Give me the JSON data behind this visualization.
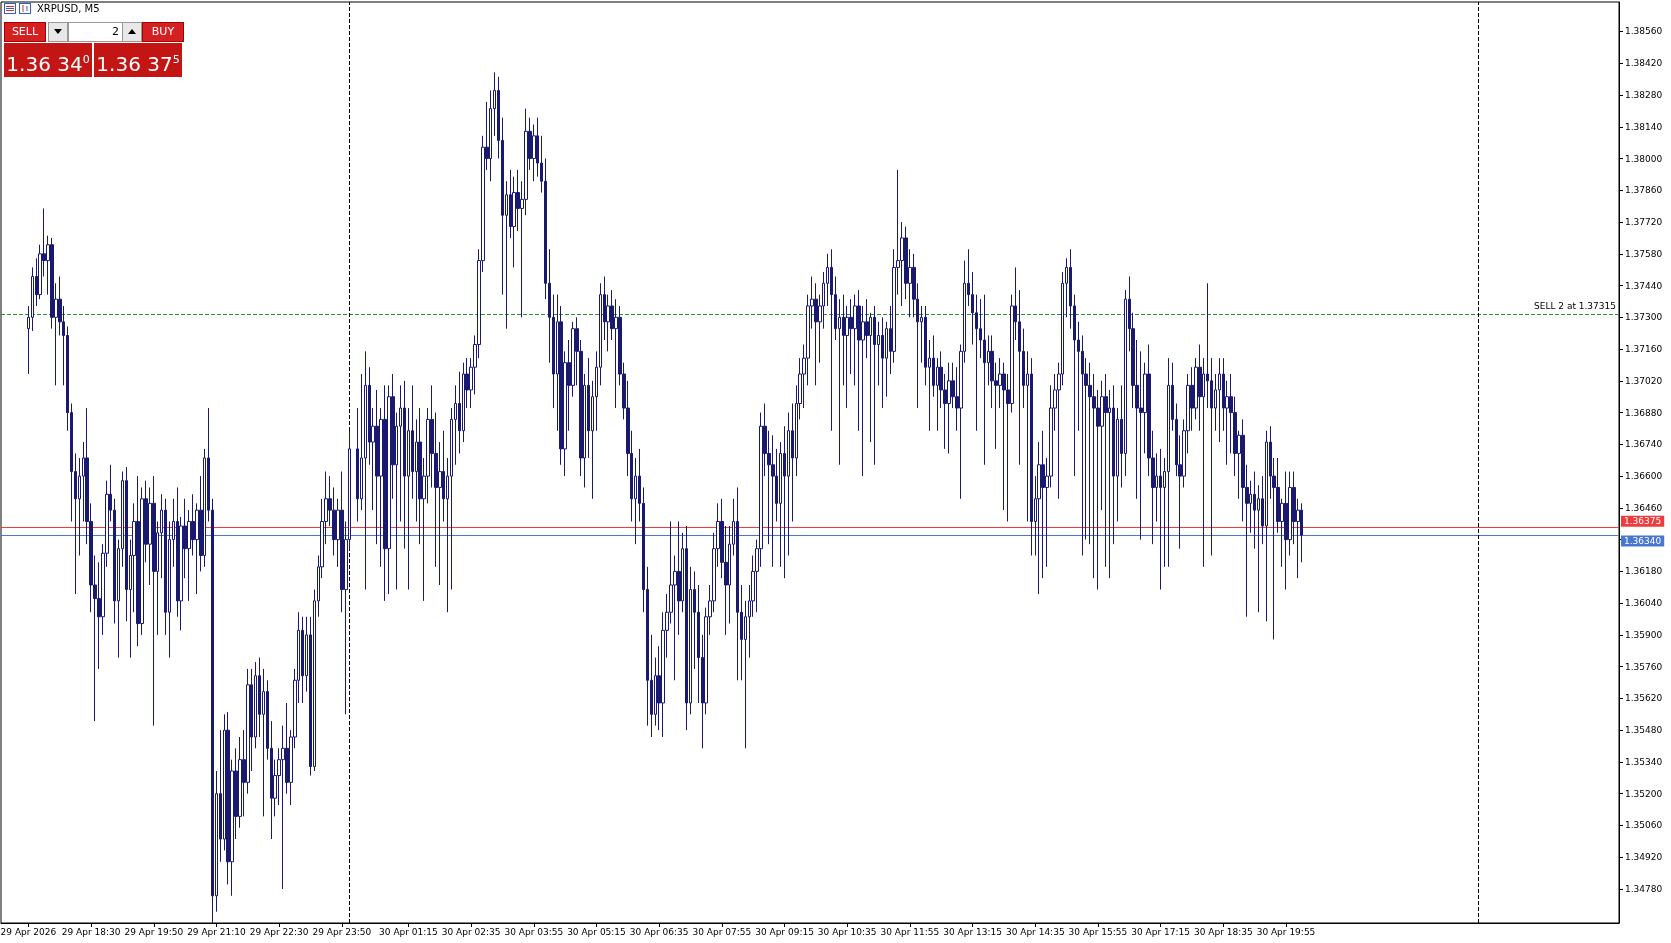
{
  "chart_data": {
    "type": "candlestick",
    "title": "XRPUSD, M5",
    "color": "#191970",
    "annotations": [
      "SELL",
      "2",
      "BUY",
      "1.36 34$^{0}$",
      "1.36 37$^{5}$"
    ],
    "xlim": [
      "2026-04-29T16:35",
      "2026-05-01T03:00"
    ],
    "xticks": [
      {
        "value": "2026-04-29T17:10",
        "label": "29 Apr 2026"
      },
      {
        "value": "2026-04-29T18:30",
        "label": "29 Apr 18:30"
      },
      {
        "value": "2026-04-29T19:50",
        "label": "29 Apr 19:50"
      },
      {
        "value": "2026-04-29T21:10",
        "label": "29 Apr 21:10"
      },
      {
        "value": "2026-04-29T22:30",
        "label": "29 Apr 22:30"
      },
      {
        "value": "2026-04-29T23:50",
        "label": "29 Apr 23:50"
      },
      {
        "value": "2026-04-30T01:15",
        "label": "30 Apr 01:15"
      },
      {
        "value": "2026-04-30T02:35",
        "label": "30 Apr 02:35"
      },
      {
        "value": "2026-04-30T03:55",
        "label": "30 Apr 03:55"
      },
      {
        "value": "2026-04-30T05:15",
        "label": "30 Apr 05:15"
      },
      {
        "value": "2026-04-30T06:35",
        "label": "30 Apr 06:35"
      },
      {
        "value": "2026-04-30T07:55",
        "label": "30 Apr 07:55"
      },
      {
        "value": "2026-04-30T09:15",
        "label": "30 Apr 09:15"
      },
      {
        "value": "2026-04-30T10:35",
        "label": "30 Apr 10:35"
      },
      {
        "value": "2026-04-30T11:55",
        "label": "30 Apr 11:55"
      },
      {
        "value": "2026-04-30T13:15",
        "label": "30 Apr 13:15"
      },
      {
        "value": "2026-04-30T14:35",
        "label": "30 Apr 14:35"
      },
      {
        "value": "2026-04-30T15:55",
        "label": "30 Apr 15:55"
      },
      {
        "value": "2026-04-30T17:15",
        "label": "30 Apr 17:15"
      },
      {
        "value": "2026-04-30T18:35",
        "label": "30 Apr 18:35"
      },
      {
        "value": "2026-04-30T19:55",
        "label": "30 Apr 19:55"
      }
    ],
    "ylim": [
      1.3463,
      1.3869
    ],
    "yticks": [
      {
        "value": 1.3478,
        "label": "1.34780"
      },
      {
        "value": 1.3492,
        "label": "1.34920"
      },
      {
        "value": 1.3506,
        "label": "1.35060"
      },
      {
        "value": 1.352,
        "label": "1.35200"
      },
      {
        "value": 1.3534,
        "label": "1.35340"
      },
      {
        "value": 1.3548,
        "label": "1.35480"
      },
      {
        "value": 1.3562,
        "label": "1.35620"
      },
      {
        "value": 1.3576,
        "label": "1.35760"
      },
      {
        "value": 1.359,
        "label": "1.35900"
      },
      {
        "value": 1.3604,
        "label": "1.36040"
      },
      {
        "value": 1.3618,
        "label": "1.36180"
      },
      {
        "value": 1.3632,
        "label": null
      },
      {
        "value": 1.3646,
        "label": "1.36460"
      },
      {
        "value": 1.366,
        "label": "1.36600"
      },
      {
        "value": 1.3674,
        "label": "1.36740"
      },
      {
        "value": 1.3688,
        "label": "1.36880"
      },
      {
        "value": 1.3702,
        "label": "1.37020"
      },
      {
        "value": 1.3716,
        "label": "1.37160"
      },
      {
        "value": 1.373,
        "label": "1.37300"
      },
      {
        "value": 1.3744,
        "label": "1.37440"
      },
      {
        "value": 1.3758,
        "label": "1.37580"
      },
      {
        "value": 1.3772,
        "label": "1.37720"
      },
      {
        "value": 1.3786,
        "label": "1.37860"
      },
      {
        "value": 1.38,
        "label": "1.38000"
      },
      {
        "value": 1.3814,
        "label": "1.38140"
      },
      {
        "value": 1.3828,
        "label": "1.38280"
      },
      {
        "value": 1.3842,
        "label": "1.38420"
      },
      {
        "value": 1.3856,
        "label": "1.38560"
      }
    ],
    "ref_lines": [
      {
        "axis": "y",
        "value": 1.37315,
        "label": "SELL 2 at 1.37315",
        "color": "#2e8b2e",
        "line_style": "dashed"
      },
      {
        "axis": "y",
        "value": 1.36375,
        "label": "1.36375",
        "color": "#f03c3c",
        "line_style": "solid"
      },
      {
        "axis": "y",
        "value": 1.3634,
        "label": "1.36340",
        "color": "#4a78d0",
        "line_style": "solid"
      },
      {
        "axis": "x",
        "value": "2026-04-30T00:00",
        "label": null,
        "color": "#000000",
        "line_style": "dashed"
      },
      {
        "axis": "x",
        "value": "2026-05-01T00:00",
        "label": null,
        "color": "#000000",
        "line_style": "dashed"
      }
    ],
    "x": [
      "2026-04-29T17:10",
      "2026-04-29T17:15",
      "2026-04-29T17:20",
      "2026-04-29T17:25",
      "2026-04-29T17:30",
      "2026-04-29T17:35",
      "2026-04-29T17:40",
      "2026-04-29T17:45",
      "2026-04-29T17:50",
      "2026-04-29T17:55",
      "2026-04-29T18:00",
      "2026-04-29T18:05",
      "2026-04-29T18:10",
      "2026-04-29T18:15",
      "2026-04-29T18:20",
      "2026-04-29T18:25",
      "2026-04-29T18:30",
      "2026-04-29T18:35",
      "2026-04-29T18:40",
      "2026-04-29T18:45",
      "2026-04-29T18:50",
      "2026-04-29T18:55",
      "2026-04-29T19:00",
      "2026-04-29T19:05",
      "2026-04-29T19:10",
      "2026-04-29T19:15",
      "2026-04-29T19:20",
      "2026-04-29T19:25",
      "2026-04-29T19:30",
      "2026-04-29T19:35",
      "2026-04-29T19:40",
      "2026-04-29T19:45",
      "2026-04-29T19:50",
      "2026-04-29T19:55",
      "2026-04-29T20:00",
      "2026-04-29T20:05",
      "2026-04-29T20:10",
      "2026-04-29T20:15",
      "2026-04-29T20:20",
      "2026-04-29T20:25",
      "2026-04-29T20:30",
      "2026-04-29T20:35",
      "2026-04-29T20:40",
      "2026-04-29T20:45",
      "2026-04-29T20:50",
      "2026-04-29T20:55",
      "2026-04-29T21:00",
      "2026-04-29T21:05",
      "2026-04-29T21:10",
      "2026-04-29T21:15",
      "2026-04-29T21:20",
      "2026-04-29T21:25",
      "2026-04-29T21:30",
      "2026-04-29T21:35",
      "2026-04-29T21:40",
      "2026-04-29T21:45",
      "2026-04-29T21:50",
      "2026-04-29T21:55",
      "2026-04-29T22:00",
      "2026-04-29T22:05",
      "2026-04-29T22:10",
      "2026-04-29T22:15",
      "2026-04-29T22:20",
      "2026-04-29T22:25",
      "2026-04-29T22:30",
      "2026-04-29T22:35",
      "2026-04-29T22:40",
      "2026-04-29T22:45",
      "2026-04-29T22:50",
      "2026-04-29T22:55",
      "2026-04-29T23:00",
      "2026-04-29T23:05",
      "2026-04-29T23:10",
      "2026-04-29T23:15",
      "2026-04-29T23:20",
      "2026-04-29T23:25",
      "2026-04-29T23:30",
      "2026-04-29T23:35",
      "2026-04-29T23:40",
      "2026-04-29T23:45",
      "2026-04-29T23:50",
      "2026-04-29T23:55",
      "2026-04-30T00:00",
      "2026-04-30T00:10",
      "2026-04-30T00:15",
      "2026-04-30T00:20",
      "2026-04-30T00:25",
      "2026-04-30T00:30",
      "2026-04-30T00:35",
      "2026-04-30T00:40",
      "2026-04-30T00:45",
      "2026-04-30T00:50",
      "2026-04-30T00:55",
      "2026-04-30T01:00",
      "2026-04-30T01:05",
      "2026-04-30T01:10",
      "2026-04-30T01:15",
      "2026-04-30T01:20",
      "2026-04-30T01:25",
      "2026-04-30T01:30",
      "2026-04-30T01:35",
      "2026-04-30T01:40",
      "2026-04-30T01:45",
      "2026-04-30T01:50",
      "2026-04-30T01:55",
      "2026-04-30T02:00",
      "2026-04-30T02:05",
      "2026-04-30T02:10",
      "2026-04-30T02:15",
      "2026-04-30T02:20",
      "2026-04-30T02:25",
      "2026-04-30T02:30",
      "2026-04-30T02:35",
      "2026-04-30T02:40",
      "2026-04-30T02:45",
      "2026-04-30T02:50",
      "2026-04-30T02:55",
      "2026-04-30T03:00",
      "2026-04-30T03:05",
      "2026-04-30T03:10",
      "2026-04-30T03:15",
      "2026-04-30T03:20",
      "2026-04-30T03:25",
      "2026-04-30T03:30",
      "2026-04-30T03:35",
      "2026-04-30T03:40",
      "2026-04-30T03:45",
      "2026-04-30T03:50",
      "2026-04-30T03:55",
      "2026-04-30T04:00",
      "2026-04-30T04:05",
      "2026-04-30T04:10",
      "2026-04-30T04:15",
      "2026-04-30T04:20",
      "2026-04-30T04:25",
      "2026-04-30T04:30",
      "2026-04-30T04:35",
      "2026-04-30T04:40",
      "2026-04-30T04:45",
      "2026-04-30T04:50",
      "2026-04-30T04:55",
      "2026-04-30T05:00",
      "2026-04-30T05:05",
      "2026-04-30T05:10",
      "2026-04-30T05:15",
      "2026-04-30T05:20",
      "2026-04-30T05:25",
      "2026-04-30T05:30",
      "2026-04-30T05:35",
      "2026-04-30T05:40",
      "2026-04-30T05:45",
      "2026-04-30T05:50",
      "2026-04-30T05:55",
      "2026-04-30T06:00",
      "2026-04-30T06:05",
      "2026-04-30T06:10",
      "2026-04-30T06:15",
      "2026-04-30T06:20",
      "2026-04-30T06:25",
      "2026-04-30T06:30",
      "2026-04-30T06:35",
      "2026-04-30T06:40",
      "2026-04-30T06:45",
      "2026-04-30T06:50",
      "2026-04-30T06:55",
      "2026-04-30T07:00",
      "2026-04-30T07:05",
      "2026-04-30T07:10",
      "2026-04-30T07:15",
      "2026-04-30T07:20",
      "2026-04-30T07:25",
      "2026-04-30T07:30",
      "2026-04-30T07:35",
      "2026-04-30T07:40",
      "2026-04-30T07:45",
      "2026-04-30T07:50",
      "2026-04-30T07:55",
      "2026-04-30T08:00",
      "2026-04-30T08:05",
      "2026-04-30T08:10",
      "2026-04-30T08:15",
      "2026-04-30T08:20",
      "2026-04-30T08:25",
      "2026-04-30T08:30",
      "2026-04-30T08:35",
      "2026-04-30T08:40",
      "2026-04-30T08:45",
      "2026-04-30T08:50",
      "2026-04-30T08:55",
      "2026-04-30T09:00",
      "2026-04-30T09:05",
      "2026-04-30T09:10",
      "2026-04-30T09:15",
      "2026-04-30T09:20",
      "2026-04-30T09:25",
      "2026-04-30T09:30",
      "2026-04-30T09:35",
      "2026-04-30T09:40",
      "2026-04-30T09:45",
      "2026-04-30T09:50",
      "2026-04-30T09:55",
      "2026-04-30T10:00",
      "2026-04-30T10:05",
      "2026-04-30T10:10",
      "2026-04-30T10:15",
      "2026-04-30T10:20",
      "2026-04-30T10:25",
      "2026-04-30T10:30",
      "2026-04-30T10:35",
      "2026-04-30T10:40",
      "2026-04-30T10:45",
      "2026-04-30T10:50",
      "2026-04-30T10:55",
      "2026-04-30T11:00",
      "2026-04-30T11:05",
      "2026-04-30T11:10",
      "2026-04-30T11:15",
      "2026-04-30T11:20",
      "2026-04-30T11:25",
      "2026-04-30T11:30",
      "2026-04-30T11:35",
      "2026-04-30T11:40",
      "2026-04-30T11:45",
      "2026-04-30T11:50",
      "2026-04-30T11:55",
      "2026-04-30T12:00",
      "2026-04-30T12:05",
      "2026-04-30T12:10",
      "2026-04-30T12:15",
      "2026-04-30T12:20",
      "2026-04-30T12:25",
      "2026-04-30T12:30",
      "2026-04-30T12:35",
      "2026-04-30T12:40",
      "2026-04-30T12:45",
      "2026-04-30T12:50",
      "2026-04-30T12:55",
      "2026-04-30T13:00",
      "2026-04-30T13:05",
      "2026-04-30T13:10",
      "2026-04-30T13:15",
      "2026-04-30T13:20",
      "2026-04-30T13:25",
      "2026-04-30T13:30",
      "2026-04-30T13:35",
      "2026-04-30T13:40",
      "2026-04-30T13:45",
      "2026-04-30T13:50",
      "2026-04-30T13:55",
      "2026-04-30T14:00",
      "2026-04-30T14:05",
      "2026-04-30T14:10",
      "2026-04-30T14:15",
      "2026-04-30T14:20",
      "2026-04-30T14:25",
      "2026-04-30T14:30",
      "2026-04-30T14:35",
      "2026-04-30T14:40",
      "2026-04-30T14:45",
      "2026-04-30T14:50",
      "2026-04-30T14:55",
      "2026-04-30T15:00",
      "2026-04-30T15:05",
      "2026-04-30T15:10",
      "2026-04-30T15:15",
      "2026-04-30T15:20",
      "2026-04-30T15:25",
      "2026-04-30T15:30",
      "2026-04-30T15:35",
      "2026-04-30T15:40",
      "2026-04-30T15:45",
      "2026-04-30T15:50",
      "2026-04-30T15:55",
      "2026-04-30T16:00",
      "2026-04-30T16:05",
      "2026-04-30T16:10",
      "2026-04-30T16:15",
      "2026-04-30T16:20",
      "2026-04-30T16:25",
      "2026-04-30T16:30",
      "2026-04-30T16:35",
      "2026-04-30T16:40",
      "2026-04-30T16:45",
      "2026-04-30T16:50",
      "2026-04-30T16:55",
      "2026-04-30T17:00",
      "2026-04-30T17:05",
      "2026-04-30T17:10",
      "2026-04-30T17:15",
      "2026-04-30T17:20",
      "2026-04-30T17:25",
      "2026-04-30T17:30",
      "2026-04-30T17:35",
      "2026-04-30T17:40",
      "2026-04-30T17:45",
      "2026-04-30T17:50",
      "2026-04-30T17:55",
      "2026-04-30T18:00",
      "2026-04-30T18:05",
      "2026-04-30T18:10",
      "2026-04-30T18:15",
      "2026-04-30T18:20",
      "2026-04-30T18:25",
      "2026-04-30T18:30",
      "2026-04-30T18:35",
      "2026-04-30T18:40",
      "2026-04-30T18:45",
      "2026-04-30T18:50",
      "2026-04-30T18:55",
      "2026-04-30T19:00",
      "2026-04-30T19:05",
      "2026-04-30T19:10",
      "2026-04-30T19:15",
      "2026-04-30T19:20",
      "2026-04-30T19:25",
      "2026-04-30T19:30",
      "2026-04-30T19:35",
      "2026-04-30T19:40",
      "2026-04-30T19:45",
      "2026-04-30T19:50",
      "2026-04-30T19:55",
      "2026-04-30T20:00",
      "2026-04-30T20:05",
      "2026-04-30T20:10",
      "2026-04-30T20:15"
    ],
    "ohlc": [
      [
        1.3725,
        1.3735,
        1.3705,
        1.373
      ],
      [
        1.373,
        1.3752,
        1.3724,
        1.3748
      ],
      [
        1.3748,
        1.3756,
        1.3735,
        1.374
      ],
      [
        1.374,
        1.3762,
        1.3738,
        1.3758
      ],
      [
        1.3758,
        1.3778,
        1.3748,
        1.3755
      ],
      [
        1.3755,
        1.3766,
        1.374,
        1.3762
      ],
      [
        1.3762,
        1.3765,
        1.3725,
        1.373
      ],
      [
        1.373,
        1.3745,
        1.37,
        1.3738
      ],
      [
        1.3738,
        1.3748,
        1.3722,
        1.3728
      ],
      [
        1.3728,
        1.3735,
        1.37,
        1.3722
      ],
      [
        1.3722,
        1.3726,
        1.368,
        1.3688
      ],
      [
        1.3688,
        1.3692,
        1.364,
        1.3662
      ],
      [
        1.3662,
        1.367,
        1.3608,
        1.365
      ],
      [
        1.365,
        1.3668,
        1.3625,
        1.366
      ],
      [
        1.366,
        1.3675,
        1.364,
        1.3668
      ],
      [
        1.3668,
        1.369,
        1.363,
        1.364
      ],
      [
        1.364,
        1.3648,
        1.36,
        1.3612
      ],
      [
        1.3612,
        1.3625,
        1.3552,
        1.3606
      ],
      [
        1.3606,
        1.3622,
        1.3575,
        1.3598
      ],
      [
        1.3598,
        1.363,
        1.359,
        1.3626
      ],
      [
        1.3626,
        1.3658,
        1.362,
        1.3652
      ],
      [
        1.3652,
        1.3665,
        1.364,
        1.3645
      ],
      [
        1.3645,
        1.365,
        1.3595,
        1.3605
      ],
      [
        1.3605,
        1.3632,
        1.358,
        1.3628
      ],
      [
        1.3628,
        1.3662,
        1.362,
        1.3658
      ],
      [
        1.3658,
        1.3664,
        1.3596,
        1.361
      ],
      [
        1.361,
        1.3632,
        1.358,
        1.3625
      ],
      [
        1.3625,
        1.3648,
        1.36,
        1.364
      ],
      [
        1.364,
        1.366,
        1.3585,
        1.3595
      ],
      [
        1.3595,
        1.3655,
        1.359,
        1.365
      ],
      [
        1.365,
        1.3658,
        1.3622,
        1.363
      ],
      [
        1.363,
        1.3655,
        1.3612,
        1.3648
      ],
      [
        1.3648,
        1.366,
        1.355,
        1.3618
      ],
      [
        1.3618,
        1.364,
        1.359,
        1.3635
      ],
      [
        1.3635,
        1.3652,
        1.3615,
        1.3645
      ],
      [
        1.3645,
        1.365,
        1.359,
        1.36
      ],
      [
        1.36,
        1.364,
        1.358,
        1.3632
      ],
      [
        1.3632,
        1.365,
        1.362,
        1.364
      ],
      [
        1.364,
        1.3655,
        1.3598,
        1.3605
      ],
      [
        1.3605,
        1.3642,
        1.3592,
        1.3638
      ],
      [
        1.3638,
        1.365,
        1.3615,
        1.3628
      ],
      [
        1.3628,
        1.3645,
        1.3605,
        1.364
      ],
      [
        1.364,
        1.3652,
        1.3625,
        1.3632
      ],
      [
        1.3632,
        1.3648,
        1.3608,
        1.3645
      ],
      [
        1.3645,
        1.366,
        1.3618,
        1.3625
      ],
      [
        1.3625,
        1.3672,
        1.362,
        1.3668
      ],
      [
        1.3668,
        1.369,
        1.364,
        1.3645
      ],
      [
        1.3645,
        1.365,
        1.3463,
        1.3475
      ],
      [
        1.3475,
        1.353,
        1.3468,
        1.352
      ],
      [
        1.352,
        1.3548,
        1.349,
        1.35
      ],
      [
        1.35,
        1.3555,
        1.3495,
        1.3548
      ],
      [
        1.3548,
        1.3556,
        1.348,
        1.349
      ],
      [
        1.349,
        1.3535,
        1.3475,
        1.353
      ],
      [
        1.353,
        1.354,
        1.35,
        1.351
      ],
      [
        1.351,
        1.3545,
        1.3505,
        1.3535
      ],
      [
        1.3535,
        1.3548,
        1.351,
        1.3525
      ],
      [
        1.3525,
        1.3575,
        1.352,
        1.3568
      ],
      [
        1.3568,
        1.3575,
        1.353,
        1.3545
      ],
      [
        1.3545,
        1.3578,
        1.354,
        1.3572
      ],
      [
        1.3572,
        1.358,
        1.3545,
        1.3555
      ],
      [
        1.3555,
        1.3575,
        1.351,
        1.3565
      ],
      [
        1.3565,
        1.357,
        1.3535,
        1.354
      ],
      [
        1.354,
        1.3552,
        1.35,
        1.3518
      ],
      [
        1.3518,
        1.3535,
        1.351,
        1.3528
      ],
      [
        1.3528,
        1.354,
        1.3515,
        1.3535
      ],
      [
        1.3535,
        1.355,
        1.3478,
        1.354
      ],
      [
        1.354,
        1.356,
        1.352,
        1.3525
      ],
      [
        1.3525,
        1.3548,
        1.3515,
        1.3545
      ],
      [
        1.3545,
        1.3575,
        1.354,
        1.357
      ],
      [
        1.357,
        1.36,
        1.356,
        1.3592
      ],
      [
        1.3592,
        1.3598,
        1.356,
        1.3572
      ],
      [
        1.3572,
        1.3598,
        1.3565,
        1.359
      ],
      [
        1.359,
        1.3598,
        1.3528,
        1.3532
      ],
      [
        1.3532,
        1.361,
        1.353,
        1.3605
      ],
      [
        1.3605,
        1.3625,
        1.3598,
        1.362
      ],
      [
        1.362,
        1.365,
        1.3615,
        1.364
      ],
      [
        1.364,
        1.3662,
        1.363,
        1.365
      ],
      [
        1.365,
        1.366,
        1.3638,
        1.3645
      ],
      [
        1.3645,
        1.3655,
        1.3625,
        1.3632
      ],
      [
        1.3632,
        1.365,
        1.362,
        1.3645
      ],
      [
        1.3645,
        1.3662,
        1.36,
        1.361
      ],
      [
        1.361,
        1.364,
        1.3555,
        1.3632
      ],
      [
        1.3632,
        1.368,
        1.3628,
        1.3672
      ],
      [
        1.3672,
        1.369,
        1.364,
        1.365
      ],
      [
        1.365,
        1.3705,
        1.3645,
        1.3668
      ],
      [
        1.3668,
        1.3715,
        1.361,
        1.37
      ],
      [
        1.37,
        1.3708,
        1.3665,
        1.3675
      ],
      [
        1.3675,
        1.369,
        1.3645,
        1.3682
      ],
      [
        1.3682,
        1.3698,
        1.363,
        1.366
      ],
      [
        1.366,
        1.369,
        1.362,
        1.3685
      ],
      [
        1.3685,
        1.37,
        1.3605,
        1.3628
      ],
      [
        1.3628,
        1.37,
        1.3608,
        1.3695
      ],
      [
        1.3695,
        1.3705,
        1.365,
        1.3665
      ],
      [
        1.3665,
        1.3688,
        1.361,
        1.3682
      ],
      [
        1.3682,
        1.37,
        1.364,
        1.369
      ],
      [
        1.369,
        1.3702,
        1.3628,
        1.366
      ],
      [
        1.366,
        1.369,
        1.361,
        1.368
      ],
      [
        1.368,
        1.37,
        1.365,
        1.3662
      ],
      [
        1.3662,
        1.3685,
        1.364,
        1.3675
      ],
      [
        1.3675,
        1.369,
        1.363,
        1.365
      ],
      [
        1.365,
        1.3668,
        1.3605,
        1.366
      ],
      [
        1.366,
        1.369,
        1.3648,
        1.3685
      ],
      [
        1.3685,
        1.37,
        1.3655,
        1.367
      ],
      [
        1.367,
        1.3688,
        1.362,
        1.3655
      ],
      [
        1.3655,
        1.3675,
        1.3612,
        1.3662
      ],
      [
        1.3662,
        1.368,
        1.364,
        1.365
      ],
      [
        1.365,
        1.3668,
        1.36,
        1.366
      ],
      [
        1.366,
        1.369,
        1.361,
        1.3685
      ],
      [
        1.3685,
        1.37,
        1.3665,
        1.3692
      ],
      [
        1.3692,
        1.3706,
        1.367,
        1.368
      ],
      [
        1.368,
        1.371,
        1.3675,
        1.3705
      ],
      [
        1.3705,
        1.3712,
        1.369,
        1.3698
      ],
      [
        1.3698,
        1.3712,
        1.369,
        1.3708
      ],
      [
        1.3708,
        1.3722,
        1.3696,
        1.3718
      ],
      [
        1.3718,
        1.376,
        1.3712,
        1.3755
      ],
      [
        1.3755,
        1.381,
        1.375,
        1.3805
      ],
      [
        1.3805,
        1.3825,
        1.3795,
        1.38
      ],
      [
        1.38,
        1.383,
        1.379,
        1.3822
      ],
      [
        1.3822,
        1.3838,
        1.381,
        1.383
      ],
      [
        1.383,
        1.3836,
        1.38,
        1.3808
      ],
      [
        1.3808,
        1.3818,
        1.374,
        1.3775
      ],
      [
        1.3775,
        1.379,
        1.3725,
        1.3784
      ],
      [
        1.3784,
        1.3795,
        1.3765,
        1.377
      ],
      [
        1.377,
        1.3792,
        1.3752,
        1.3785
      ],
      [
        1.3785,
        1.3795,
        1.3768,
        1.3778
      ],
      [
        1.3778,
        1.379,
        1.373,
        1.3782
      ],
      [
        1.3782,
        1.3822,
        1.3775,
        1.3812
      ],
      [
        1.3812,
        1.3818,
        1.3795,
        1.38
      ],
      [
        1.38,
        1.3815,
        1.379,
        1.381
      ],
      [
        1.381,
        1.3818,
        1.3792,
        1.3798
      ],
      [
        1.3798,
        1.381,
        1.3785,
        1.379
      ],
      [
        1.379,
        1.38,
        1.3738,
        1.3745
      ],
      [
        1.3745,
        1.376,
        1.371,
        1.373
      ],
      [
        1.373,
        1.374,
        1.369,
        1.3705
      ],
      [
        1.3705,
        1.374,
        1.368,
        1.3728
      ],
      [
        1.3728,
        1.3735,
        1.3665,
        1.3672
      ],
      [
        1.3672,
        1.3715,
        1.366,
        1.371
      ],
      [
        1.371,
        1.372,
        1.368,
        1.37
      ],
      [
        1.37,
        1.3728,
        1.3695,
        1.3725
      ],
      [
        1.3725,
        1.373,
        1.37,
        1.3715
      ],
      [
        1.3715,
        1.372,
        1.366,
        1.3668
      ],
      [
        1.3668,
        1.3705,
        1.3655,
        1.37
      ],
      [
        1.37,
        1.3712,
        1.3668,
        1.368
      ],
      [
        1.368,
        1.3702,
        1.365,
        1.3695
      ],
      [
        1.3695,
        1.3715,
        1.368,
        1.3708
      ],
      [
        1.3708,
        1.3745,
        1.37,
        1.374
      ],
      [
        1.374,
        1.3748,
        1.372,
        1.3728
      ],
      [
        1.3728,
        1.374,
        1.3715,
        1.3735
      ],
      [
        1.3735,
        1.3742,
        1.372,
        1.3725
      ],
      [
        1.3725,
        1.3738,
        1.369,
        1.373
      ],
      [
        1.373,
        1.3735,
        1.37,
        1.3705
      ],
      [
        1.3705,
        1.371,
        1.3685,
        1.369
      ],
      [
        1.369,
        1.3702,
        1.366,
        1.367
      ],
      [
        1.367,
        1.368,
        1.364,
        1.365
      ],
      [
        1.365,
        1.3668,
        1.363,
        1.366
      ],
      [
        1.366,
        1.3672,
        1.364,
        1.3648
      ],
      [
        1.3648,
        1.3655,
        1.36,
        1.361
      ],
      [
        1.361,
        1.362,
        1.355,
        1.357
      ],
      [
        1.357,
        1.359,
        1.3545,
        1.3555
      ],
      [
        1.3555,
        1.358,
        1.355,
        1.3572
      ],
      [
        1.3572,
        1.3585,
        1.3548,
        1.356
      ],
      [
        1.356,
        1.36,
        1.3545,
        1.3592
      ],
      [
        1.3592,
        1.3608,
        1.358,
        1.36
      ],
      [
        1.36,
        1.364,
        1.3595,
        1.3612
      ],
      [
        1.3612,
        1.3625,
        1.357,
        1.3618
      ],
      [
        1.3618,
        1.364,
        1.359,
        1.3605
      ],
      [
        1.3605,
        1.3635,
        1.36,
        1.3628
      ],
      [
        1.3628,
        1.3638,
        1.3548,
        1.356
      ],
      [
        1.356,
        1.362,
        1.3555,
        1.361
      ],
      [
        1.361,
        1.3618,
        1.3575,
        1.36
      ],
      [
        1.36,
        1.3612,
        1.356,
        1.358
      ],
      [
        1.358,
        1.359,
        1.354,
        1.356
      ],
      [
        1.356,
        1.3602,
        1.3555,
        1.3598
      ],
      [
        1.3598,
        1.3612,
        1.359,
        1.3605
      ],
      [
        1.3605,
        1.3635,
        1.36,
        1.3628
      ],
      [
        1.3628,
        1.3648,
        1.362,
        1.364
      ],
      [
        1.364,
        1.365,
        1.3615,
        1.3622
      ],
      [
        1.3622,
        1.3638,
        1.359,
        1.3612
      ],
      [
        1.3612,
        1.3638,
        1.3595,
        1.363
      ],
      [
        1.363,
        1.365,
        1.3625,
        1.364
      ],
      [
        1.364,
        1.3655,
        1.357,
        1.36
      ],
      [
        1.36,
        1.3612,
        1.357,
        1.3588
      ],
      [
        1.3588,
        1.3605,
        1.354,
        1.3598
      ],
      [
        1.3598,
        1.3612,
        1.358,
        1.3605
      ],
      [
        1.3605,
        1.3625,
        1.3598,
        1.3618
      ],
      [
        1.3618,
        1.3632,
        1.36,
        1.3628
      ],
      [
        1.3628,
        1.3688,
        1.362,
        1.3682
      ],
      [
        1.3682,
        1.3692,
        1.366,
        1.367
      ],
      [
        1.367,
        1.368,
        1.363,
        1.3665
      ],
      [
        1.3665,
        1.3678,
        1.362,
        1.366
      ],
      [
        1.366,
        1.3672,
        1.364,
        1.3648
      ],
      [
        1.3648,
        1.3675,
        1.362,
        1.367
      ],
      [
        1.367,
        1.3682,
        1.3615,
        1.366
      ],
      [
        1.366,
        1.3688,
        1.3625,
        1.368
      ],
      [
        1.368,
        1.3692,
        1.364,
        1.3668
      ],
      [
        1.3668,
        1.37,
        1.366,
        1.3692
      ],
      [
        1.3692,
        1.3712,
        1.3685,
        1.3705
      ],
      [
        1.3705,
        1.3718,
        1.369,
        1.3712
      ],
      [
        1.3712,
        1.374,
        1.37,
        1.3735
      ],
      [
        1.3735,
        1.3748,
        1.3725,
        1.3738
      ],
      [
        1.3738,
        1.3745,
        1.37,
        1.3728
      ],
      [
        1.3728,
        1.374,
        1.371,
        1.3735
      ],
      [
        1.3735,
        1.375,
        1.3725,
        1.3745
      ],
      [
        1.3745,
        1.3758,
        1.3735,
        1.3752
      ],
      [
        1.3752,
        1.376,
        1.368,
        1.374
      ],
      [
        1.374,
        1.3748,
        1.372,
        1.3725
      ],
      [
        1.3725,
        1.3738,
        1.3665,
        1.373
      ],
      [
        1.373,
        1.374,
        1.37,
        1.3722
      ],
      [
        1.3722,
        1.3735,
        1.369,
        1.373
      ],
      [
        1.373,
        1.3738,
        1.3705,
        1.3725
      ],
      [
        1.3725,
        1.374,
        1.37,
        1.3735
      ],
      [
        1.3735,
        1.3742,
        1.368,
        1.372
      ],
      [
        1.372,
        1.3735,
        1.366,
        1.3728
      ],
      [
        1.3728,
        1.3738,
        1.3712,
        1.3722
      ],
      [
        1.3722,
        1.3732,
        1.3675,
        1.373
      ],
      [
        1.373,
        1.3735,
        1.3665,
        1.3718
      ],
      [
        1.3718,
        1.3728,
        1.37,
        1.3722
      ],
      [
        1.3722,
        1.373,
        1.369,
        1.3712
      ],
      [
        1.3712,
        1.3728,
        1.3695,
        1.3725
      ],
      [
        1.3725,
        1.3735,
        1.3705,
        1.3715
      ],
      [
        1.3715,
        1.376,
        1.371,
        1.3752
      ],
      [
        1.3752,
        1.3795,
        1.374,
        1.3755
      ],
      [
        1.3755,
        1.3772,
        1.3735,
        1.3765
      ],
      [
        1.3765,
        1.377,
        1.3738,
        1.3745
      ],
      [
        1.3745,
        1.376,
        1.373,
        1.3752
      ],
      [
        1.3752,
        1.3758,
        1.373,
        1.3738
      ],
      [
        1.3738,
        1.3745,
        1.369,
        1.3728
      ],
      [
        1.3728,
        1.3735,
        1.371,
        1.373
      ],
      [
        1.373,
        1.3735,
        1.37,
        1.3708
      ],
      [
        1.3708,
        1.372,
        1.368,
        1.3712
      ],
      [
        1.3712,
        1.3722,
        1.3695,
        1.37
      ],
      [
        1.37,
        1.3712,
        1.368,
        1.3708
      ],
      [
        1.3708,
        1.3715,
        1.369,
        1.3698
      ],
      [
        1.3698,
        1.3705,
        1.3672,
        1.3692
      ],
      [
        1.3692,
        1.371,
        1.367,
        1.3702
      ],
      [
        1.3702,
        1.371,
        1.369,
        1.3695
      ],
      [
        1.3695,
        1.3708,
        1.368,
        1.369
      ],
      [
        1.369,
        1.3718,
        1.365,
        1.3715
      ],
      [
        1.3715,
        1.3755,
        1.371,
        1.3745
      ],
      [
        1.3745,
        1.376,
        1.3735,
        1.374
      ],
      [
        1.374,
        1.375,
        1.3718,
        1.3732
      ],
      [
        1.3732,
        1.374,
        1.368,
        1.3725
      ],
      [
        1.3725,
        1.3738,
        1.3712,
        1.372
      ],
      [
        1.372,
        1.374,
        1.3665,
        1.371
      ],
      [
        1.371,
        1.3722,
        1.37,
        1.3715
      ],
      [
        1.3715,
        1.3722,
        1.369,
        1.3702
      ],
      [
        1.3702,
        1.371,
        1.3672,
        1.37
      ],
      [
        1.37,
        1.3712,
        1.369,
        1.3705
      ],
      [
        1.3705,
        1.371,
        1.3645,
        1.3698
      ],
      [
        1.3698,
        1.3705,
        1.364,
        1.3692
      ],
      [
        1.3692,
        1.374,
        1.3688,
        1.3735
      ],
      [
        1.3735,
        1.3752,
        1.372,
        1.3728
      ],
      [
        1.3728,
        1.3742,
        1.3665,
        1.3715
      ],
      [
        1.3715,
        1.3725,
        1.369,
        1.37
      ],
      [
        1.37,
        1.3715,
        1.364,
        1.3705
      ],
      [
        1.3705,
        1.3712,
        1.3625,
        1.364
      ],
      [
        1.364,
        1.366,
        1.3625,
        1.365
      ],
      [
        1.365,
        1.3675,
        1.3608,
        1.3665
      ],
      [
        1.3665,
        1.368,
        1.3615,
        1.3655
      ],
      [
        1.3655,
        1.3668,
        1.362,
        1.366
      ],
      [
        1.366,
        1.37,
        1.3655,
        1.369
      ],
      [
        1.369,
        1.3705,
        1.368,
        1.3698
      ],
      [
        1.3698,
        1.371,
        1.365,
        1.3705
      ],
      [
        1.3705,
        1.375,
        1.37,
        1.3745
      ],
      [
        1.3745,
        1.3756,
        1.373,
        1.3752
      ],
      [
        1.3752,
        1.376,
        1.3725,
        1.3735
      ],
      [
        1.3735,
        1.374,
        1.366,
        1.372
      ],
      [
        1.372,
        1.3728,
        1.368,
        1.3715
      ],
      [
        1.3715,
        1.3722,
        1.3625,
        1.3705
      ],
      [
        1.3705,
        1.3712,
        1.3632,
        1.37
      ],
      [
        1.37,
        1.371,
        1.363,
        1.3695
      ],
      [
        1.3695,
        1.3705,
        1.3615,
        1.369
      ],
      [
        1.369,
        1.3698,
        1.361,
        1.3682
      ],
      [
        1.3682,
        1.3702,
        1.3645,
        1.3695
      ],
      [
        1.3695,
        1.3705,
        1.362,
        1.3688
      ],
      [
        1.3688,
        1.3698,
        1.3615,
        1.369
      ],
      [
        1.369,
        1.37,
        1.363,
        1.366
      ],
      [
        1.366,
        1.369,
        1.364,
        1.3685
      ],
      [
        1.3685,
        1.37,
        1.3655,
        1.367
      ],
      [
        1.367,
        1.3742,
        1.366,
        1.3738
      ],
      [
        1.3738,
        1.3748,
        1.3715,
        1.3725
      ],
      [
        1.3725,
        1.3732,
        1.369,
        1.37
      ],
      [
        1.37,
        1.372,
        1.365,
        1.369
      ],
      [
        1.369,
        1.3715,
        1.3632,
        1.3688
      ],
      [
        1.3688,
        1.371,
        1.367,
        1.3705
      ],
      [
        1.3705,
        1.3718,
        1.366,
        1.3668
      ],
      [
        1.3668,
        1.368,
        1.363,
        1.3655
      ],
      [
        1.3655,
        1.367,
        1.364,
        1.366
      ],
      [
        1.366,
        1.3672,
        1.361,
        1.3655
      ],
      [
        1.3655,
        1.3668,
        1.362,
        1.3662
      ],
      [
        1.3662,
        1.3712,
        1.362,
        1.37
      ],
      [
        1.37,
        1.371,
        1.368,
        1.3685
      ],
      [
        1.3685,
        1.3692,
        1.366,
        1.3665
      ],
      [
        1.3665,
        1.3678,
        1.3628,
        1.366
      ],
      [
        1.366,
        1.3685,
        1.3655,
        1.368
      ],
      [
        1.368,
        1.3705,
        1.367,
        1.37
      ],
      [
        1.37,
        1.3708,
        1.368,
        1.369
      ],
      [
        1.369,
        1.3712,
        1.3685,
        1.3708
      ],
      [
        1.3708,
        1.3718,
        1.368,
        1.3695
      ],
      [
        1.3695,
        1.3712,
        1.362,
        1.3705
      ],
      [
        1.3705,
        1.3745,
        1.369,
        1.3702
      ],
      [
        1.3702,
        1.3712,
        1.3625,
        1.369
      ],
      [
        1.369,
        1.3705,
        1.368,
        1.3698
      ],
      [
        1.3698,
        1.3712,
        1.3675,
        1.3705
      ],
      [
        1.3705,
        1.3712,
        1.368,
        1.369
      ],
      [
        1.369,
        1.3702,
        1.3665,
        1.3695
      ],
      [
        1.3695,
        1.3705,
        1.367,
        1.3688
      ],
      [
        1.3688,
        1.3695,
        1.366,
        1.367
      ],
      [
        1.367,
        1.368,
        1.365,
        1.3678
      ],
      [
        1.3678,
        1.3685,
        1.364,
        1.3655
      ],
      [
        1.3655,
        1.3665,
        1.3598,
        1.3648
      ],
      [
        1.3648,
        1.3658,
        1.3635,
        1.3652
      ],
      [
        1.3652,
        1.3662,
        1.3628,
        1.3645
      ],
      [
        1.3645,
        1.3656,
        1.36,
        1.365
      ],
      [
        1.365,
        1.366,
        1.363,
        1.3638
      ],
      [
        1.3638,
        1.368,
        1.3596,
        1.3675
      ],
      [
        1.3675,
        1.3682,
        1.365,
        1.366
      ],
      [
        1.366,
        1.3668,
        1.3588,
        1.3655
      ],
      [
        1.3655,
        1.3668,
        1.3635,
        1.364
      ],
      [
        1.364,
        1.365,
        1.362,
        1.3648
      ],
      [
        1.3648,
        1.3662,
        1.361,
        1.3632
      ],
      [
        1.3632,
        1.3662,
        1.3625,
        1.3655
      ],
      [
        1.3655,
        1.3662,
        1.363,
        1.364
      ],
      [
        1.364,
        1.365,
        1.3615,
        1.3645
      ],
      [
        1.3645,
        1.3648,
        1.3622,
        1.3634
      ]
    ]
  }
}
